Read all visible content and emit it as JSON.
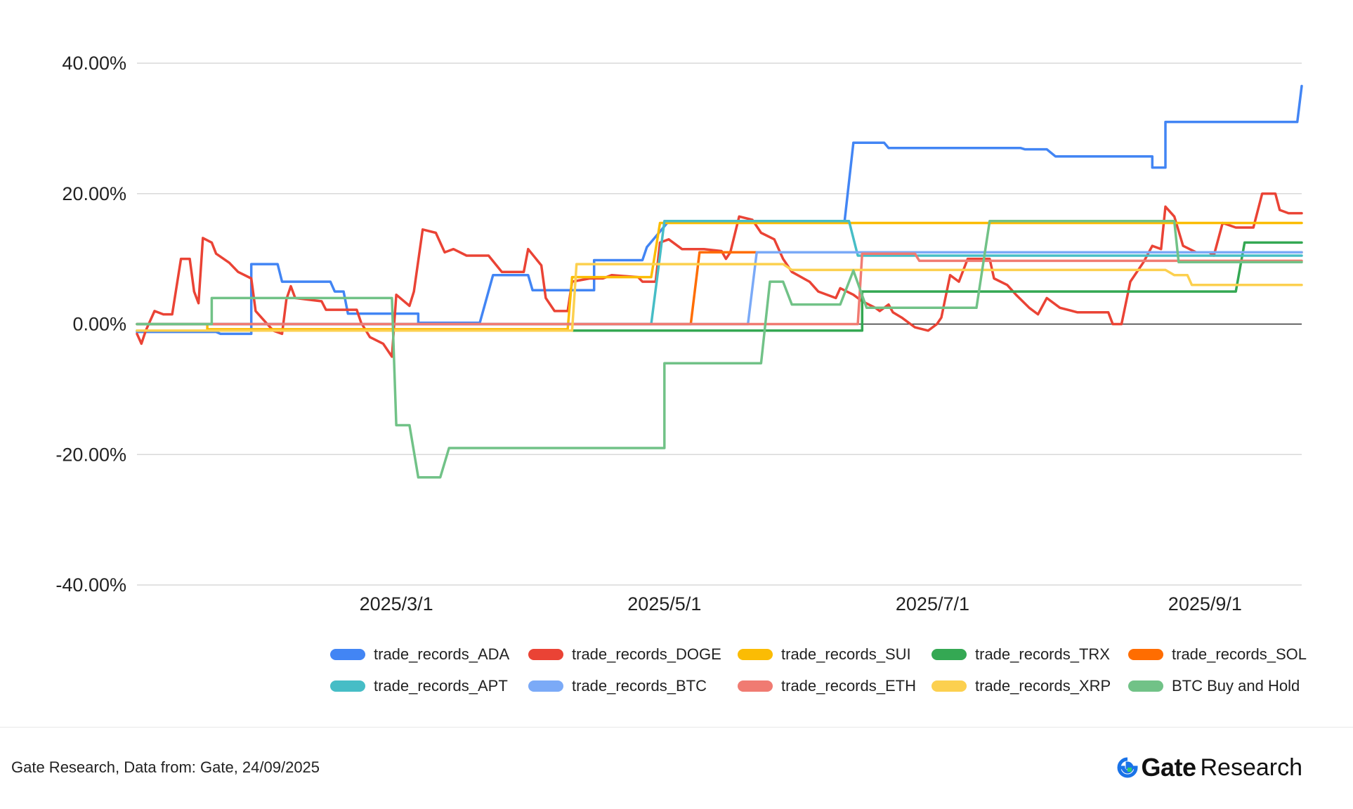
{
  "chart_data": {
    "type": "line",
    "title": "",
    "xlabel": "",
    "ylabel": "",
    "ylim": [
      -0.4,
      0.4
    ],
    "yticks": [
      -0.4,
      -0.2,
      0.0,
      0.2,
      0.4
    ],
    "ytick_labels": [
      "-40.00%",
      "-20.00%",
      "0.00%",
      "20.00%",
      "40.00%"
    ],
    "xlim": [
      "2025-01-01",
      "2025-09-23"
    ],
    "xticks": [
      "2025-03-01",
      "2025-05-01",
      "2025-07-01",
      "2025-09-01"
    ],
    "xtick_labels": [
      "2025/3/1",
      "2025/5/1",
      "2025/7/1",
      "2025/9/1"
    ],
    "grid": true,
    "legend_position": "bottom",
    "series": [
      {
        "name": "trade_records_ADA",
        "color": "#4285F4",
        "points": [
          [
            "2025-01-01",
            -0.012
          ],
          [
            "2025-01-19",
            -0.012
          ],
          [
            "2025-01-20",
            -0.015
          ],
          [
            "2025-01-27",
            -0.015
          ],
          [
            "2025-01-27",
            0.092
          ],
          [
            "2025-02-02",
            0.092
          ],
          [
            "2025-02-03",
            0.065
          ],
          [
            "2025-02-14",
            0.065
          ],
          [
            "2025-02-15",
            0.05
          ],
          [
            "2025-02-17",
            0.05
          ],
          [
            "2025-02-18",
            0.016
          ],
          [
            "2025-03-06",
            0.016
          ],
          [
            "2025-03-06",
            0.002
          ],
          [
            "2025-03-20",
            0.002
          ],
          [
            "2025-03-23",
            0.075
          ],
          [
            "2025-03-31",
            0.075
          ],
          [
            "2025-04-01",
            0.052
          ],
          [
            "2025-04-15",
            0.052
          ],
          [
            "2025-04-15",
            0.098
          ],
          [
            "2025-04-26",
            0.098
          ],
          [
            "2025-04-27",
            0.118
          ],
          [
            "2025-05-01",
            0.15
          ],
          [
            "2025-05-02",
            0.158
          ],
          [
            "2025-06-11",
            0.158
          ],
          [
            "2025-06-13",
            0.278
          ],
          [
            "2025-06-20",
            0.278
          ],
          [
            "2025-06-21",
            0.27
          ],
          [
            "2025-07-21",
            0.27
          ],
          [
            "2025-07-22",
            0.268
          ],
          [
            "2025-07-27",
            0.268
          ],
          [
            "2025-07-29",
            0.257
          ],
          [
            "2025-08-20",
            0.257
          ],
          [
            "2025-08-20",
            0.24
          ],
          [
            "2025-08-23",
            0.24
          ],
          [
            "2025-08-23",
            0.31
          ],
          [
            "2025-09-22",
            0.31
          ],
          [
            "2025-09-23",
            0.365
          ]
        ]
      },
      {
        "name": "trade_records_DOGE",
        "color": "#EA4335",
        "points": [
          [
            "2025-01-01",
            -0.015
          ],
          [
            "2025-01-02",
            -0.03
          ],
          [
            "2025-01-03",
            -0.01
          ],
          [
            "2025-01-05",
            0.02
          ],
          [
            "2025-01-07",
            0.015
          ],
          [
            "2025-01-09",
            0.015
          ],
          [
            "2025-01-11",
            0.1
          ],
          [
            "2025-01-13",
            0.1
          ],
          [
            "2025-01-14",
            0.05
          ],
          [
            "2025-01-15",
            0.032
          ],
          [
            "2025-01-16",
            0.132
          ],
          [
            "2025-01-18",
            0.125
          ],
          [
            "2025-01-19",
            0.108
          ],
          [
            "2025-01-22",
            0.094
          ],
          [
            "2025-01-24",
            0.08
          ],
          [
            "2025-01-27",
            0.07
          ],
          [
            "2025-01-28",
            0.02
          ],
          [
            "2025-01-30",
            0.005
          ],
          [
            "2025-02-01",
            -0.01
          ],
          [
            "2025-02-03",
            -0.015
          ],
          [
            "2025-02-04",
            0.038
          ],
          [
            "2025-02-05",
            0.058
          ],
          [
            "2025-02-06",
            0.04
          ],
          [
            "2025-02-12",
            0.035
          ],
          [
            "2025-02-13",
            0.022
          ],
          [
            "2025-02-20",
            0.022
          ],
          [
            "2025-02-21",
            0.002
          ],
          [
            "2025-02-23",
            -0.02
          ],
          [
            "2025-02-26",
            -0.03
          ],
          [
            "2025-02-28",
            -0.05
          ],
          [
            "2025-03-01",
            0.045
          ],
          [
            "2025-03-04",
            0.028
          ],
          [
            "2025-03-05",
            0.05
          ],
          [
            "2025-03-07",
            0.145
          ],
          [
            "2025-03-10",
            0.14
          ],
          [
            "2025-03-12",
            0.11
          ],
          [
            "2025-03-14",
            0.115
          ],
          [
            "2025-03-17",
            0.105
          ],
          [
            "2025-03-22",
            0.105
          ],
          [
            "2025-03-25",
            0.08
          ],
          [
            "2025-03-30",
            0.08
          ],
          [
            "2025-03-31",
            0.115
          ],
          [
            "2025-04-03",
            0.09
          ],
          [
            "2025-04-04",
            0.04
          ],
          [
            "2025-04-06",
            0.02
          ],
          [
            "2025-04-09",
            0.02
          ],
          [
            "2025-04-10",
            0.065
          ],
          [
            "2025-04-14",
            0.07
          ],
          [
            "2025-04-17",
            0.07
          ],
          [
            "2025-04-19",
            0.075
          ],
          [
            "2025-04-25",
            0.072
          ],
          [
            "2025-04-26",
            0.065
          ],
          [
            "2025-04-29",
            0.065
          ],
          [
            "2025-04-30",
            0.125
          ],
          [
            "2025-05-02",
            0.13
          ],
          [
            "2025-05-05",
            0.115
          ],
          [
            "2025-05-10",
            0.115
          ],
          [
            "2025-05-14",
            0.112
          ],
          [
            "2025-05-15",
            0.1
          ],
          [
            "2025-05-16",
            0.11
          ],
          [
            "2025-05-18",
            0.165
          ],
          [
            "2025-05-21",
            0.16
          ],
          [
            "2025-05-23",
            0.14
          ],
          [
            "2025-05-26",
            0.13
          ],
          [
            "2025-05-28",
            0.1
          ],
          [
            "2025-05-30",
            0.08
          ],
          [
            "2025-06-03",
            0.065
          ],
          [
            "2025-06-05",
            0.05
          ],
          [
            "2025-06-09",
            0.04
          ],
          [
            "2025-06-10",
            0.055
          ],
          [
            "2025-06-13",
            0.045
          ],
          [
            "2025-06-15",
            0.035
          ],
          [
            "2025-06-18",
            0.025
          ],
          [
            "2025-06-19",
            0.02
          ],
          [
            "2025-06-21",
            0.03
          ],
          [
            "2025-06-22",
            0.018
          ],
          [
            "2025-06-24",
            0.01
          ],
          [
            "2025-06-27",
            -0.005
          ],
          [
            "2025-06-30",
            -0.01
          ],
          [
            "2025-07-02",
            0.0
          ],
          [
            "2025-07-03",
            0.01
          ],
          [
            "2025-07-05",
            0.075
          ],
          [
            "2025-07-07",
            0.065
          ],
          [
            "2025-07-09",
            0.1
          ],
          [
            "2025-07-14",
            0.1
          ],
          [
            "2025-07-15",
            0.07
          ],
          [
            "2025-07-18",
            0.06
          ],
          [
            "2025-07-20",
            0.045
          ],
          [
            "2025-07-23",
            0.025
          ],
          [
            "2025-07-25",
            0.015
          ],
          [
            "2025-07-27",
            0.04
          ],
          [
            "2025-07-30",
            0.025
          ],
          [
            "2025-08-03",
            0.018
          ],
          [
            "2025-08-10",
            0.018
          ],
          [
            "2025-08-11",
            0.0
          ],
          [
            "2025-08-13",
            0.0
          ],
          [
            "2025-08-15",
            0.065
          ],
          [
            "2025-08-18",
            0.095
          ],
          [
            "2025-08-20",
            0.12
          ],
          [
            "2025-08-22",
            0.115
          ],
          [
            "2025-08-23",
            0.18
          ],
          [
            "2025-08-25",
            0.165
          ],
          [
            "2025-08-27",
            0.12
          ],
          [
            "2025-08-30",
            0.11
          ],
          [
            "2025-09-02",
            0.11
          ],
          [
            "2025-09-03",
            0.105
          ],
          [
            "2025-09-05",
            0.155
          ],
          [
            "2025-09-08",
            0.148
          ],
          [
            "2025-09-12",
            0.148
          ],
          [
            "2025-09-14",
            0.2
          ],
          [
            "2025-09-17",
            0.2
          ],
          [
            "2025-09-18",
            0.175
          ],
          [
            "2025-09-20",
            0.17
          ],
          [
            "2025-09-23",
            0.17
          ]
        ]
      },
      {
        "name": "trade_records_SUI",
        "color": "#FBBC04",
        "points": [
          [
            "2025-01-01",
            0.0
          ],
          [
            "2025-01-17",
            0.0
          ],
          [
            "2025-01-17",
            -0.008
          ],
          [
            "2025-04-09",
            -0.008
          ],
          [
            "2025-04-10",
            0.072
          ],
          [
            "2025-04-28",
            0.072
          ],
          [
            "2025-04-30",
            0.155
          ],
          [
            "2025-09-23",
            0.155
          ]
        ]
      },
      {
        "name": "trade_records_TRX",
        "color": "#34A853",
        "points": [
          [
            "2025-01-01",
            -0.01
          ],
          [
            "2025-06-15",
            -0.01
          ],
          [
            "2025-06-15",
            0.05
          ],
          [
            "2025-09-08",
            0.05
          ],
          [
            "2025-09-10",
            0.125
          ],
          [
            "2025-09-23",
            0.125
          ]
        ]
      },
      {
        "name": "trade_records_SOL",
        "color": "#FF6D01",
        "points": [
          [
            "2025-01-01",
            0.0
          ],
          [
            "2025-05-07",
            0.0
          ],
          [
            "2025-05-09",
            0.11
          ],
          [
            "2025-09-23",
            0.11
          ]
        ]
      },
      {
        "name": "trade_records_APT",
        "color": "#46BDC6",
        "points": [
          [
            "2025-01-01",
            0.0
          ],
          [
            "2025-04-28",
            0.0
          ],
          [
            "2025-05-01",
            0.158
          ],
          [
            "2025-06-12",
            0.158
          ],
          [
            "2025-06-14",
            0.105
          ],
          [
            "2025-09-23",
            0.105
          ]
        ]
      },
      {
        "name": "trade_records_BTC",
        "color": "#7BAAF7",
        "points": [
          [
            "2025-01-01",
            0.0
          ],
          [
            "2025-05-20",
            0.0
          ],
          [
            "2025-05-22",
            0.11
          ],
          [
            "2025-09-23",
            0.11
          ]
        ]
      },
      {
        "name": "trade_records_ETH",
        "color": "#F07B72",
        "points": [
          [
            "2025-01-01",
            0.0
          ],
          [
            "2025-06-14",
            0.0
          ],
          [
            "2025-06-15",
            0.108
          ],
          [
            "2025-06-27",
            0.108
          ],
          [
            "2025-06-28",
            0.097
          ],
          [
            "2025-09-23",
            0.097
          ]
        ]
      },
      {
        "name": "trade_records_XRP",
        "color": "#FCD04F",
        "points": [
          [
            "2025-01-01",
            -0.01
          ],
          [
            "2025-04-10",
            -0.01
          ],
          [
            "2025-04-11",
            0.092
          ],
          [
            "2025-05-28",
            0.092
          ],
          [
            "2025-05-30",
            0.083
          ],
          [
            "2025-08-23",
            0.083
          ],
          [
            "2025-08-25",
            0.075
          ],
          [
            "2025-08-28",
            0.075
          ],
          [
            "2025-08-29",
            0.06
          ],
          [
            "2025-09-23",
            0.06
          ]
        ]
      },
      {
        "name": "BTC Buy and Hold",
        "color": "#71C287",
        "points": [
          [
            "2025-01-01",
            0.0
          ],
          [
            "2025-01-18",
            0.0
          ],
          [
            "2025-01-18",
            0.04
          ],
          [
            "2025-02-28",
            0.04
          ],
          [
            "2025-03-01",
            -0.155
          ],
          [
            "2025-03-04",
            -0.155
          ],
          [
            "2025-03-06",
            -0.235
          ],
          [
            "2025-03-11",
            -0.235
          ],
          [
            "2025-03-13",
            -0.19
          ],
          [
            "2025-05-01",
            -0.19
          ],
          [
            "2025-05-01",
            -0.06
          ],
          [
            "2025-05-23",
            -0.06
          ],
          [
            "2025-05-25",
            0.065
          ],
          [
            "2025-05-28",
            0.065
          ],
          [
            "2025-05-30",
            0.03
          ],
          [
            "2025-06-10",
            0.03
          ],
          [
            "2025-06-13",
            0.082
          ],
          [
            "2025-06-16",
            0.025
          ],
          [
            "2025-07-11",
            0.025
          ],
          [
            "2025-07-14",
            0.158
          ],
          [
            "2025-08-25",
            0.158
          ],
          [
            "2025-08-26",
            0.095
          ],
          [
            "2025-09-23",
            0.095
          ]
        ]
      }
    ]
  },
  "footer": {
    "source": "Gate Research, Data from: Gate, 24/09/2025",
    "brand_name": "Gate",
    "brand_sub": "Research"
  }
}
